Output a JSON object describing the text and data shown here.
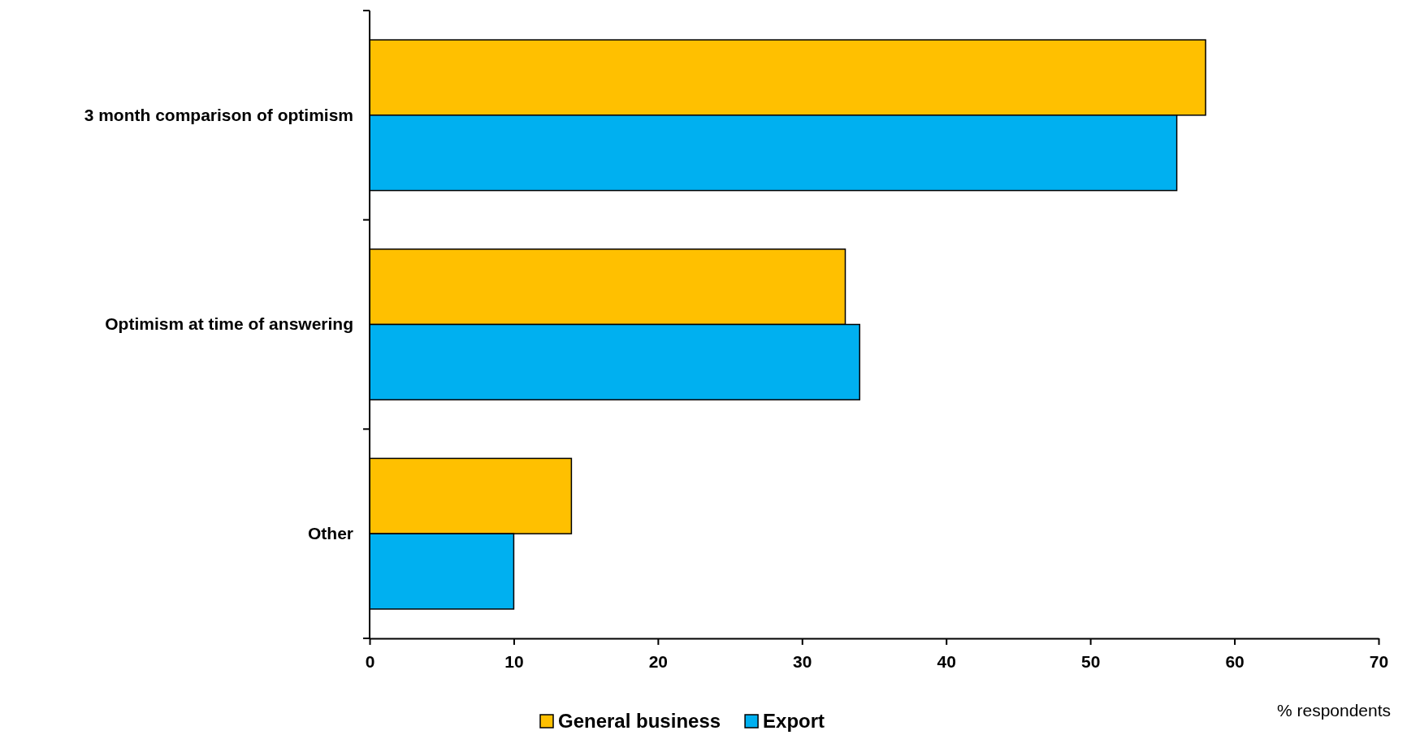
{
  "chart_data": {
    "type": "bar",
    "orientation": "horizontal",
    "xlabel": "% respondents",
    "categories": [
      "3 month comparison of optimism",
      "Optimism at time of answering",
      "Other"
    ],
    "series": [
      {
        "name": "General business",
        "color": "#ffc000",
        "values": [
          58,
          33,
          14
        ]
      },
      {
        "name": "Export",
        "color": "#00b0f0",
        "values": [
          56,
          34,
          10
        ]
      }
    ],
    "xlim": [
      0,
      70
    ],
    "xticks": [
      0,
      10,
      20,
      30,
      40,
      50,
      60,
      70
    ],
    "grid": false,
    "legend": "bottom"
  }
}
